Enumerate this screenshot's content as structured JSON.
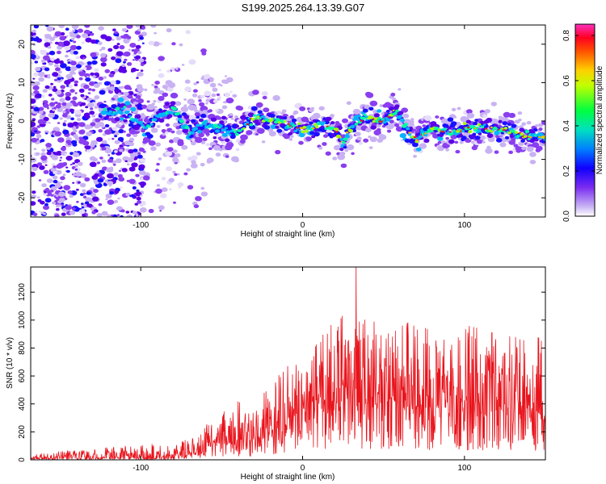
{
  "figure_title": "S199.2025.264.13.39.G07",
  "chart_data": [
    {
      "type": "heatmap",
      "title": "S199.2025.264.13.39.G07",
      "xlabel": "Height of straight line (km)",
      "ylabel": "Frequency (Hz)",
      "xlim": [
        -168,
        150
      ],
      "ylim": [
        -25,
        25
      ],
      "xticks": [
        -100,
        0,
        100
      ],
      "xtick_labels": [
        "-100",
        "0",
        "100"
      ],
      "yticks": [
        -20,
        -10,
        0,
        10,
        20
      ],
      "ytick_labels": [
        "-20",
        "-10",
        "0",
        "10",
        "20"
      ],
      "colorbar": {
        "label": "Normalized spectral amplitude",
        "range": [
          0,
          0.85
        ],
        "ticks": [
          0,
          0.2,
          0.4,
          0.6,
          0.8
        ],
        "tick_labels": [
          "0.0",
          "0.2",
          "0.4",
          "0.6",
          "0.8"
        ],
        "colors": [
          "#ffffff",
          "#b89cf0",
          "#6a00f0",
          "#0000ff",
          "#00c8ff",
          "#00ff66",
          "#ffff00",
          "#ff8000",
          "#ff0000",
          "#ff00ff"
        ]
      },
      "ridge": {
        "x": [
          -120,
          -110,
          -100,
          -95,
          -90,
          -80,
          -70,
          -60,
          -50,
          -40,
          -30,
          -20,
          -10,
          0,
          10,
          20,
          25,
          30,
          40,
          50,
          58,
          62,
          70,
          80,
          90,
          100,
          110,
          120,
          130,
          140,
          148
        ],
        "freq_hz": [
          2,
          3,
          -1,
          -2,
          1,
          3,
          -3,
          -1,
          -2,
          -3,
          1,
          0,
          -1,
          -2,
          -1,
          -2,
          -6,
          -1,
          1,
          0,
          3,
          -1,
          -5,
          -2,
          -3,
          -2,
          -2,
          -2,
          -3,
          -4,
          -4
        ]
      }
    },
    {
      "type": "line",
      "xlabel": "Height of straight line (km)",
      "ylabel": "SNR (10 * v/v)",
      "xlim": [
        -168,
        150
      ],
      "ylim": [
        0,
        1380
      ],
      "xticks": [
        -100,
        0,
        100
      ],
      "xtick_labels": [
        "-100",
        "0",
        "100"
      ],
      "yticks": [
        0,
        200,
        400,
        600,
        800,
        1000,
        1200
      ],
      "ytick_labels": [
        "0",
        "200",
        "400",
        "600",
        "800",
        "1000",
        "1200"
      ],
      "series": [
        {
          "name": "SNR",
          "color": "#e8141c",
          "envelope": {
            "x": [
              -168,
              -90,
              -80,
              -70,
              -60,
              -50,
              -40,
              -30,
              -20,
              -10,
              0,
              10,
              20,
              30,
              40,
              50,
              60,
              70,
              80,
              90,
              100,
              110,
              120,
              130,
              140,
              150
            ],
            "baseline": [
              10,
              12,
              15,
              30,
              80,
              110,
              130,
              110,
              180,
              280,
              350,
              380,
              400,
              420,
              400,
              390,
              380,
              370,
              350,
              380,
              340,
              320,
              300,
              310,
              300,
              280
            ],
            "peak": [
              45,
              120,
              90,
              160,
              250,
              340,
              420,
              360,
              560,
              760,
              650,
              870,
              1050,
              1040,
              1020,
              950,
              980,
              1050,
              900,
              880,
              1000,
              980,
              890,
              880,
              870,
              880
            ]
          },
          "max_point": {
            "x": 33,
            "y": 1380
          }
        }
      ]
    }
  ]
}
